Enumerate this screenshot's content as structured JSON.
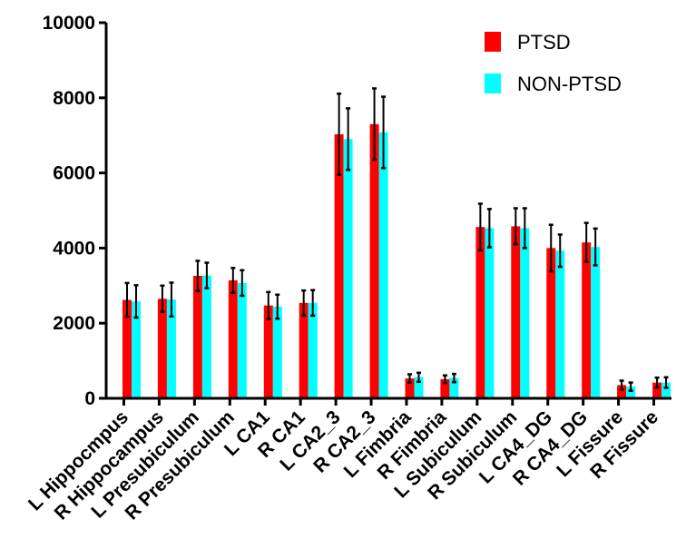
{
  "chart_data": {
    "type": "bar",
    "title": "",
    "xlabel": "",
    "ylabel": "",
    "ylim": [
      0,
      10000
    ],
    "yticks": [
      0,
      2000,
      4000,
      6000,
      8000,
      10000
    ],
    "ytick_labels": [
      "0",
      "2000",
      "4000",
      "6000",
      "8000",
      "10000"
    ],
    "legend_position": "top-right",
    "categories": [
      "L Hippocmpus",
      "R Hippocampus",
      "L Presubiculum",
      "R Presubiculum",
      "L CA1",
      "R CA1",
      "L CA2_3",
      "R CA2_3",
      "L Fimbria",
      "R Fimbria",
      "L Subiculum",
      "R Subiculum",
      "L CA4_DG",
      "R CA4_DG",
      "L Fissure",
      "R Fissure"
    ],
    "series": [
      {
        "name": "PTSD",
        "color": "#ff0000",
        "values": [
          2620,
          2650,
          3260,
          3140,
          2470,
          2540,
          7030,
          7300,
          530,
          510,
          4560,
          4580,
          4000,
          4150,
          350,
          420
        ],
        "errors": [
          450,
          350,
          400,
          330,
          360,
          330,
          1080,
          950,
          110,
          100,
          620,
          480,
          620,
          520,
          120,
          130
        ]
      },
      {
        "name": "NON-PTSD",
        "color": "#00ffff",
        "values": [
          2580,
          2630,
          3270,
          3070,
          2440,
          2540,
          6900,
          7080,
          560,
          540,
          4530,
          4530,
          3930,
          4030,
          310,
          420
        ],
        "errors": [
          430,
          450,
          340,
          340,
          320,
          340,
          820,
          950,
          120,
          110,
          510,
          530,
          430,
          490,
          110,
          140
        ]
      }
    ]
  }
}
